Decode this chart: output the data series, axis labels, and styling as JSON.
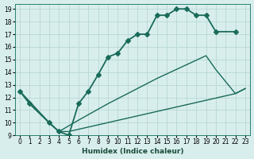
{
  "xlabel": "Humidex (Indice chaleur)",
  "bg_color": "#d8eeed",
  "grid_color": "#b8d8d4",
  "line_color": "#1a6b5a",
  "xlim": [
    -0.5,
    23.5
  ],
  "ylim": [
    9,
    19.4
  ],
  "xtick_labels": [
    "0",
    "1",
    "2",
    "3",
    "4",
    "5",
    "6",
    "7",
    "8",
    "9",
    "10",
    "11",
    "12",
    "13",
    "14",
    "15",
    "16",
    "17",
    "18",
    "19",
    "20",
    "21",
    "22",
    "23"
  ],
  "ytick_labels": [
    "9",
    "10",
    "11",
    "12",
    "13",
    "14",
    "15",
    "16",
    "17",
    "18",
    "19"
  ],
  "xticks": [
    0,
    1,
    2,
    3,
    4,
    5,
    6,
    7,
    8,
    9,
    10,
    11,
    12,
    13,
    14,
    15,
    16,
    17,
    18,
    19,
    20,
    21,
    22,
    23
  ],
  "yticks": [
    9,
    10,
    11,
    12,
    13,
    14,
    15,
    16,
    17,
    18,
    19
  ],
  "line1_seg1_x": [
    0,
    1,
    3,
    4,
    5
  ],
  "line1_seg1_y": [
    12.5,
    11.5,
    10.0,
    9.3,
    9.0
  ],
  "line1_seg2_x": [
    5,
    6,
    7,
    8,
    9,
    10,
    11,
    12,
    13,
    14,
    15,
    16,
    17,
    18,
    19,
    20,
    22
  ],
  "line1_seg2_y": [
    9.0,
    11.5,
    12.5,
    13.8,
    15.2,
    15.5,
    16.5,
    17.0,
    17.0,
    18.5,
    18.5,
    19.0,
    19.0,
    18.5,
    18.5,
    17.2,
    17.2
  ],
  "line2_x": [
    0,
    3,
    4,
    6,
    9,
    14,
    19,
    20,
    22,
    23
  ],
  "line2_y": [
    12.5,
    10.0,
    9.3,
    10.2,
    11.5,
    13.5,
    15.3,
    14.2,
    12.3,
    12.7
  ],
  "line3_x": [
    0,
    3,
    4,
    5,
    22,
    23
  ],
  "line3_y": [
    12.5,
    10.0,
    9.3,
    9.3,
    12.3,
    12.7
  ],
  "xlabel_fontsize": 6.5,
  "tick_fontsize": 5.5,
  "linewidth_main": 1.3,
  "linewidth_thin": 1.0,
  "markersize": 3.0
}
